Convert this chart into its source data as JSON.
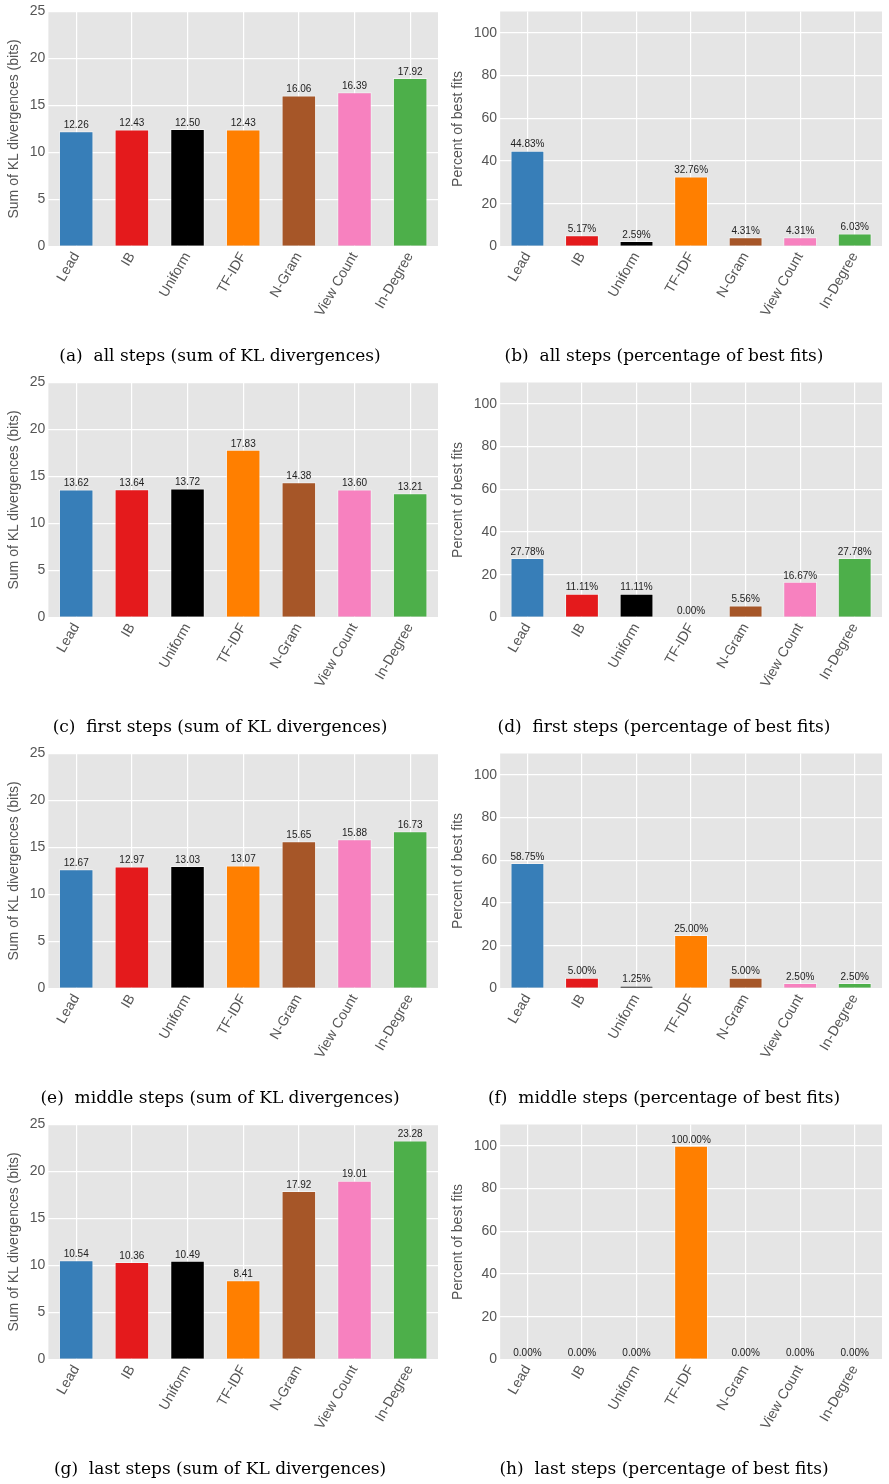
{
  "chart_data": [
    {
      "type": "bar",
      "title": "(a)  all steps (sum of KL divergences)",
      "ylabel": "Sum of KL divergences (bits)",
      "categories": [
        "Lead",
        "IB",
        "Uniform",
        "TF-IDF",
        "N-Gram",
        "View Count",
        "In-Degree"
      ],
      "values": [
        12.26,
        12.43,
        12.5,
        12.43,
        16.06,
        16.39,
        17.92
      ],
      "value_labels": [
        "12.26",
        "12.43",
        "12.50",
        "12.43",
        "16.06",
        "16.39",
        "17.92"
      ],
      "colors": [
        "#377eb8",
        "#e41a1c",
        "#000000",
        "#ff7f00",
        "#a65628",
        "#f781bf",
        "#4daf4a"
      ],
      "ylim": [
        0,
        25
      ],
      "yticks": [
        0,
        5,
        10,
        15,
        20,
        25
      ],
      "grid": true,
      "legend": false
    },
    {
      "type": "bar",
      "title": "(b)  all steps (percentage of best fits)",
      "ylabel": "Percent of best fits",
      "categories": [
        "Lead",
        "IB",
        "Uniform",
        "TF-IDF",
        "N-Gram",
        "View Count",
        "In-Degree"
      ],
      "values": [
        44.83,
        5.17,
        2.59,
        32.76,
        4.31,
        4.31,
        6.03
      ],
      "value_labels": [
        "44.83%",
        "5.17%",
        "2.59%",
        "32.76%",
        "4.31%",
        "4.31%",
        "6.03%"
      ],
      "colors": [
        "#377eb8",
        "#e41a1c",
        "#000000",
        "#ff7f00",
        "#a65628",
        "#f781bf",
        "#4daf4a"
      ],
      "ylim": [
        0,
        110
      ],
      "yticks": [
        0,
        20,
        40,
        60,
        80,
        100
      ],
      "grid": true,
      "legend": false
    },
    {
      "type": "bar",
      "title": "(c)  first steps (sum of KL divergences)",
      "ylabel": "Sum of KL divergences (bits)",
      "categories": [
        "Lead",
        "IB",
        "Uniform",
        "TF-IDF",
        "N-Gram",
        "View Count",
        "In-Degree"
      ],
      "values": [
        13.62,
        13.64,
        13.72,
        17.83,
        14.38,
        13.6,
        13.21
      ],
      "value_labels": [
        "13.62",
        "13.64",
        "13.72",
        "17.83",
        "14.38",
        "13.60",
        "13.21"
      ],
      "colors": [
        "#377eb8",
        "#e41a1c",
        "#000000",
        "#ff7f00",
        "#a65628",
        "#f781bf",
        "#4daf4a"
      ],
      "ylim": [
        0,
        25
      ],
      "yticks": [
        0,
        5,
        10,
        15,
        20,
        25
      ],
      "grid": true,
      "legend": false
    },
    {
      "type": "bar",
      "title": "(d)  first steps (percentage of best fits)",
      "ylabel": "Percent of best fits",
      "categories": [
        "Lead",
        "IB",
        "Uniform",
        "TF-IDF",
        "N-Gram",
        "View Count",
        "In-Degree"
      ],
      "values": [
        27.78,
        11.11,
        11.11,
        0.0,
        5.56,
        16.67,
        27.78
      ],
      "value_labels": [
        "27.78%",
        "11.11%",
        "11.11%",
        "0.00%",
        "5.56%",
        "16.67%",
        "27.78%"
      ],
      "colors": [
        "#377eb8",
        "#e41a1c",
        "#000000",
        "#ff7f00",
        "#a65628",
        "#f781bf",
        "#4daf4a"
      ],
      "ylim": [
        0,
        110
      ],
      "yticks": [
        0,
        20,
        40,
        60,
        80,
        100
      ],
      "grid": true,
      "legend": false
    },
    {
      "type": "bar",
      "title": "(e)  middle steps (sum of KL divergences)",
      "ylabel": "Sum of KL divergences (bits)",
      "categories": [
        "Lead",
        "IB",
        "Uniform",
        "TF-IDF",
        "N-Gram",
        "View Count",
        "In-Degree"
      ],
      "values": [
        12.67,
        12.97,
        13.03,
        13.07,
        15.65,
        15.88,
        16.73
      ],
      "value_labels": [
        "12.67",
        "12.97",
        "13.03",
        "13.07",
        "15.65",
        "15.88",
        "16.73"
      ],
      "colors": [
        "#377eb8",
        "#e41a1c",
        "#000000",
        "#ff7f00",
        "#a65628",
        "#f781bf",
        "#4daf4a"
      ],
      "ylim": [
        0,
        25
      ],
      "yticks": [
        0,
        5,
        10,
        15,
        20,
        25
      ],
      "grid": true,
      "legend": false
    },
    {
      "type": "bar",
      "title": "(f)  middle steps (percentage of best fits)",
      "ylabel": "Percent of best fits",
      "categories": [
        "Lead",
        "IB",
        "Uniform",
        "TF-IDF",
        "N-Gram",
        "View Count",
        "In-Degree"
      ],
      "values": [
        58.75,
        5.0,
        1.25,
        25.0,
        5.0,
        2.5,
        2.5
      ],
      "value_labels": [
        "58.75%",
        "5.00%",
        "1.25%",
        "25.00%",
        "5.00%",
        "2.50%",
        "2.50%"
      ],
      "colors": [
        "#377eb8",
        "#e41a1c",
        "#000000",
        "#ff7f00",
        "#a65628",
        "#f781bf",
        "#4daf4a"
      ],
      "ylim": [
        0,
        110
      ],
      "yticks": [
        0,
        20,
        40,
        60,
        80,
        100
      ],
      "grid": true,
      "legend": false
    },
    {
      "type": "bar",
      "title": "(g)  last steps (sum of KL divergences)",
      "ylabel": "Sum of KL divergences (bits)",
      "categories": [
        "Lead",
        "IB",
        "Uniform",
        "TF-IDF",
        "N-Gram",
        "View Count",
        "In-Degree"
      ],
      "values": [
        10.54,
        10.36,
        10.49,
        8.41,
        17.92,
        19.01,
        23.28
      ],
      "value_labels": [
        "10.54",
        "10.36",
        "10.49",
        "8.41",
        "17.92",
        "19.01",
        "23.28"
      ],
      "colors": [
        "#377eb8",
        "#e41a1c",
        "#000000",
        "#ff7f00",
        "#a65628",
        "#f781bf",
        "#4daf4a"
      ],
      "ylim": [
        0,
        25
      ],
      "yticks": [
        0,
        5,
        10,
        15,
        20,
        25
      ],
      "grid": true,
      "legend": false
    },
    {
      "type": "bar",
      "title": "(h)  last steps (percentage of best fits)",
      "ylabel": "Percent of best fits",
      "categories": [
        "Lead",
        "IB",
        "Uniform",
        "TF-IDF",
        "N-Gram",
        "View Count",
        "In-Degree"
      ],
      "values": [
        0.0,
        0.0,
        0.0,
        100.0,
        0.0,
        0.0,
        0.0
      ],
      "value_labels": [
        "0.00%",
        "0.00%",
        "0.00%",
        "100.00%",
        "0.00%",
        "0.00%",
        "0.00%"
      ],
      "colors": [
        "#377eb8",
        "#e41a1c",
        "#000000",
        "#ff7f00",
        "#a65628",
        "#f781bf",
        "#4daf4a"
      ],
      "ylim": [
        0,
        110
      ],
      "yticks": [
        0,
        20,
        40,
        60,
        80,
        100
      ],
      "grid": true,
      "legend": false
    }
  ]
}
